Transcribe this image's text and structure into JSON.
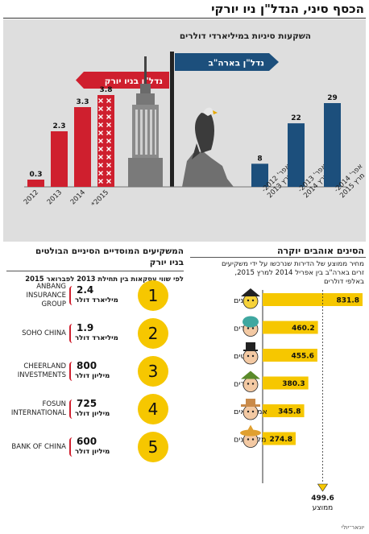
{
  "header": {
    "title": "הכסף סיני, הנדל\"ן ניו יורקי",
    "credit": "יונאר־יולי"
  },
  "top": {
    "chart_title": "השקעות סיניות במיליארדי דולרים",
    "sign_ny": "נדל\"ן בניו יורק",
    "sign_us": "נדל\"ן בארה\"ב"
  },
  "investors": {
    "title_line1": "המשקיעים המוסדיים הסיניים הבולטים",
    "title_line2": "בניו יורק",
    "subtitle": "לפי שווי עסקאות בין תחילת 2013 לפברואר 2015",
    "items": [
      {
        "rank": "1",
        "name_line1": "ANBANG",
        "name_line2": "INSURANCE",
        "name_line3": "GROUP",
        "amount": "2.4",
        "unit": "מיליארד דולר"
      },
      {
        "rank": "2",
        "name_line1": "SOHO CHINA",
        "name_line2": "",
        "name_line3": "",
        "amount": "1.9",
        "unit": "מיליארד דולר"
      },
      {
        "rank": "3",
        "name_line1": "CHEERLAND",
        "name_line2": "INVESTMENTS",
        "name_line3": "",
        "amount": "800",
        "unit": "מיליון דולר"
      },
      {
        "rank": "4",
        "name_line1": "FOSUN",
        "name_line2": "INTERNATIONAL",
        "name_line3": "",
        "amount": "725",
        "unit": "מיליון דולר"
      },
      {
        "rank": "5",
        "name_line1": "BANK OF CHINA",
        "name_line2": "",
        "name_line3": "",
        "amount": "600",
        "unit": "מיליון דולר"
      }
    ]
  },
  "colors": {
    "red": "#cf1f2e",
    "blue": "#1c4f7c",
    "yellow": "#f6c700",
    "panel": "#dedede"
  },
  "chart_data": [
    {
      "type": "bar",
      "title": "השקעות סיניות במיליארדי דולרים",
      "series": [
        {
          "name": "נדל\"ן בניו יורק",
          "categories": [
            "2012",
            "2013",
            "2014",
            "*2015"
          ],
          "values": [
            0.3,
            2.3,
            3.3,
            3.8
          ],
          "value_labels": [
            "0.3",
            "2.3",
            "3.3",
            "3.8"
          ]
        },
        {
          "name": "נדל\"ן בארה\"ב",
          "categories": [
            "אפר' 2012- מרץ 2013",
            "אפר' 2013- מרץ 2014",
            "אפר' 2014- מרץ 2015"
          ],
          "values": [
            8,
            22,
            29
          ],
          "value_labels": [
            "8",
            "22",
            "29"
          ]
        }
      ]
    },
    {
      "type": "bar",
      "orientation": "horizontal",
      "title": "הסינים אוהבים יוקרה",
      "subtitle_lines": [
        "מחיר ממוצע של הדירות שנרכשו על ידי משקיעים",
        "זרים בארה\"ב בין אפריל 2014 למרץ 2015,",
        "באלפי דולרים"
      ],
      "categories": [
        "סינים",
        "הודים",
        "בריטים",
        "קנדים",
        "אמריקאים",
        "מקסיקנים"
      ],
      "values": [
        831.8,
        460.2,
        455.6,
        380.3,
        345.8,
        274.8
      ],
      "value_labels": [
        "831.8",
        "460.2",
        "455.6",
        "380.3",
        "345.8",
        "274.8"
      ],
      "average": 499.6,
      "average_value_label": "499.6",
      "average_label": "ממוצע"
    }
  ]
}
